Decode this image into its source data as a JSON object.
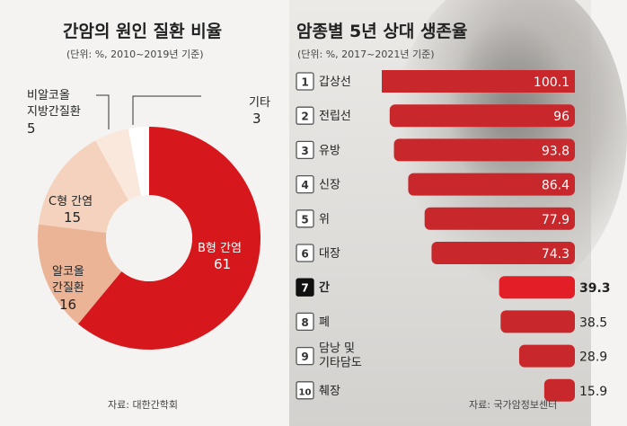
{
  "left": {
    "title": "간암의 원인 질환 비율",
    "subtitle": "(단위: %, 2010~2019년 기준)",
    "source": "자료: 대한간학회",
    "labels": {
      "hbv_name": "B형 간염",
      "hbv_value": "61",
      "alcohol_line1": "알코올",
      "alcohol_line2": "간질환",
      "alcohol_value": "16",
      "hcv_name": "C형 간염",
      "hcv_value": "15",
      "nafld_line1": "비알코올",
      "nafld_line2": "지방간질환",
      "nafld_value": "5",
      "other_name": "기타",
      "other_value": "3"
    }
  },
  "right": {
    "title": "암종별 5년 상대 생존율",
    "subtitle": "(단위: %, 2017~2021년 기준)",
    "source": "자료: 국가암정보센터"
  },
  "chart_data": [
    {
      "type": "pie",
      "title": "간암의 원인 질환 비율",
      "subtitle": "(단위: %, 2010~2019년 기준)",
      "categories": [
        "B형 간염",
        "알코올 간질환",
        "C형 간염",
        "비알코올 지방간질환",
        "기타"
      ],
      "values": [
        61,
        16,
        15,
        5,
        3
      ],
      "colors": [
        "#d6171c",
        "#ebb496",
        "#f4d2bd",
        "#fbe8dc",
        "#ffffff"
      ]
    },
    {
      "type": "bar",
      "orientation": "horizontal",
      "title": "암종별 5년 상대 생존율",
      "subtitle": "(단위: %, 2017~2021년 기준)",
      "categories": [
        "갑상선",
        "전립선",
        "유방",
        "신장",
        "위",
        "대장",
        "간",
        "폐",
        "담낭 및 기타담도",
        "췌장"
      ],
      "ranks": [
        "1",
        "2",
        "3",
        "4",
        "5",
        "6",
        "7",
        "8",
        "9",
        "10"
      ],
      "values": [
        100.1,
        96,
        93.8,
        86.4,
        77.9,
        74.3,
        39.3,
        38.5,
        28.9,
        15.9
      ],
      "xlim": [
        0,
        100.1
      ],
      "highlight": "간",
      "colors": {
        "bar": "#c8272b",
        "highlight_bar": "#e41e26",
        "rank_box": "#555555",
        "highlight_rank_box": "#111111"
      }
    }
  ]
}
